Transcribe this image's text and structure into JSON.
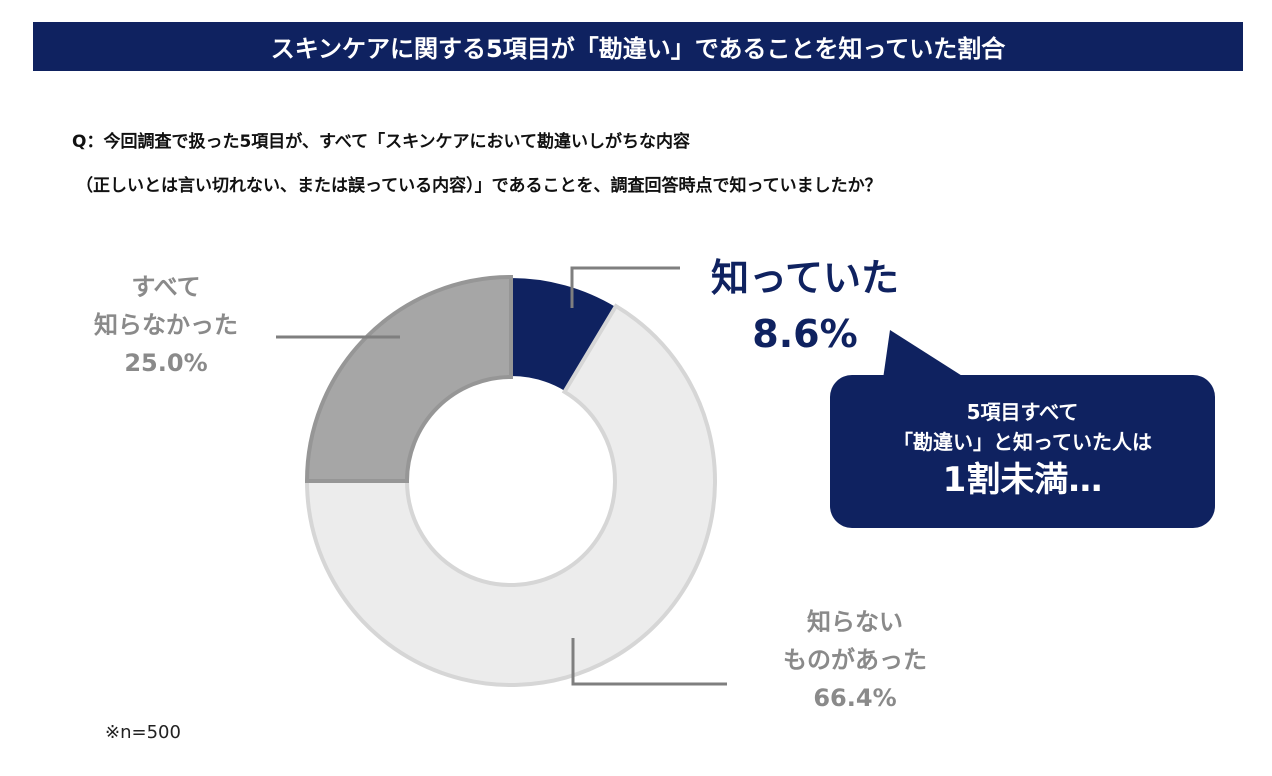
{
  "title": "スキンケアに関する5項目が「勘違い」であることを知っていた割合",
  "question": {
    "line1": "Q：今回調査で扱った5項目が、すべて「スキンケアにおいて勘違いしがちな内容",
    "line2": "（正しいとは言い切れない、または誤っている内容）」であることを、調査回答時点で知っていましたか？"
  },
  "chart_data": {
    "type": "pie",
    "donut": true,
    "start": "top, clockwise",
    "slices": [
      {
        "label_lines": [
          "知っていた"
        ],
        "value": 8.6,
        "value_label": "8.6%",
        "color": "#0f2260",
        "stroke": "#ffffff"
      },
      {
        "label_lines": [
          "知らない",
          "ものがあった"
        ],
        "value": 66.4,
        "value_label": "66.4%",
        "color": "#ececec",
        "stroke": "#d6d6d6"
      },
      {
        "label_lines": [
          "すべて",
          "知らなかった"
        ],
        "value": 25.0,
        "value_label": "25.0%",
        "color": "#a6a6a6",
        "stroke": "#969696"
      }
    ]
  },
  "callout": {
    "line1": "5項目すべて",
    "line2": "「勘違い」と知っていた人は",
    "line3": "1割未満…"
  },
  "note": "※n=500"
}
